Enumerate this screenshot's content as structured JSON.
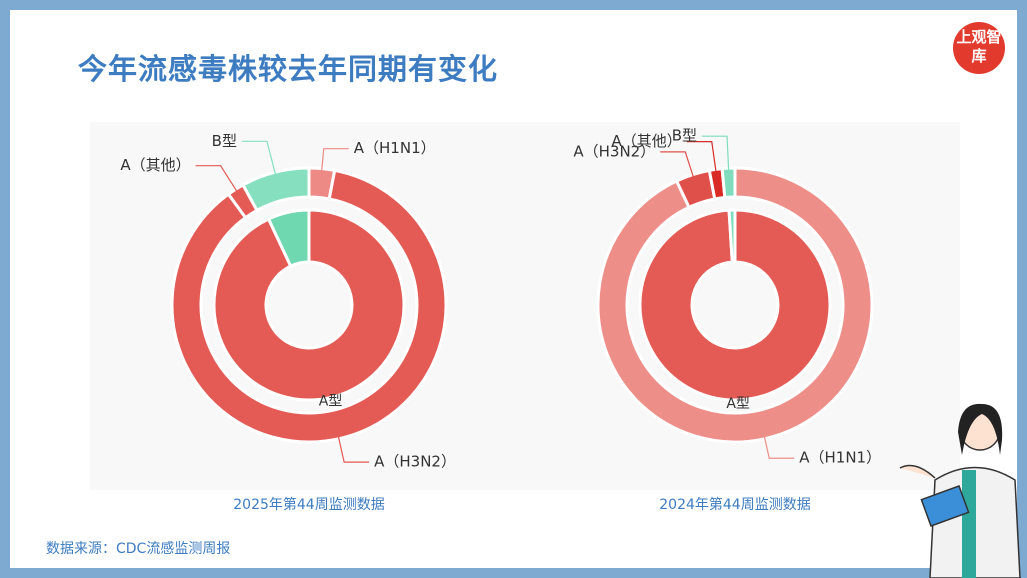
{
  "header": {
    "title": "今年流感毒株较去年同期有变化",
    "logo": "上观智库"
  },
  "source": "数据来源：CDC流感监测周报",
  "chart_data": [
    {
      "type": "donut",
      "caption": "2025年第44周监测数据",
      "rings": [
        {
          "categories": [
            "A型",
            null
          ],
          "values": [
            93,
            7
          ],
          "colors": [
            "#e45a54",
            "#6fd8b0"
          ]
        },
        {
          "categories": [
            "A（H1N1）",
            "A（H3N2）",
            "A（其他）",
            "B型"
          ],
          "values": [
            3,
            87,
            2,
            8
          ],
          "colors": [
            "#ee8a85",
            "#e45a54",
            "#e45a54",
            "#86e0c0"
          ]
        }
      ]
    },
    {
      "type": "donut",
      "caption": "2024年第44周监测数据",
      "rings": [
        {
          "categories": [
            "A型",
            null
          ],
          "values": [
            99,
            1
          ],
          "colors": [
            "#e45a54",
            "#7fdcbc"
          ]
        },
        {
          "categories": [
            "A（H1N1）",
            "A（H3N2）",
            "A（其他）",
            "B型"
          ],
          "values": [
            93,
            4,
            1.5,
            1.5
          ],
          "colors": [
            "#ee8e89",
            "#e0504a",
            "#d92b26",
            "#7fdcbc"
          ]
        }
      ]
    }
  ]
}
